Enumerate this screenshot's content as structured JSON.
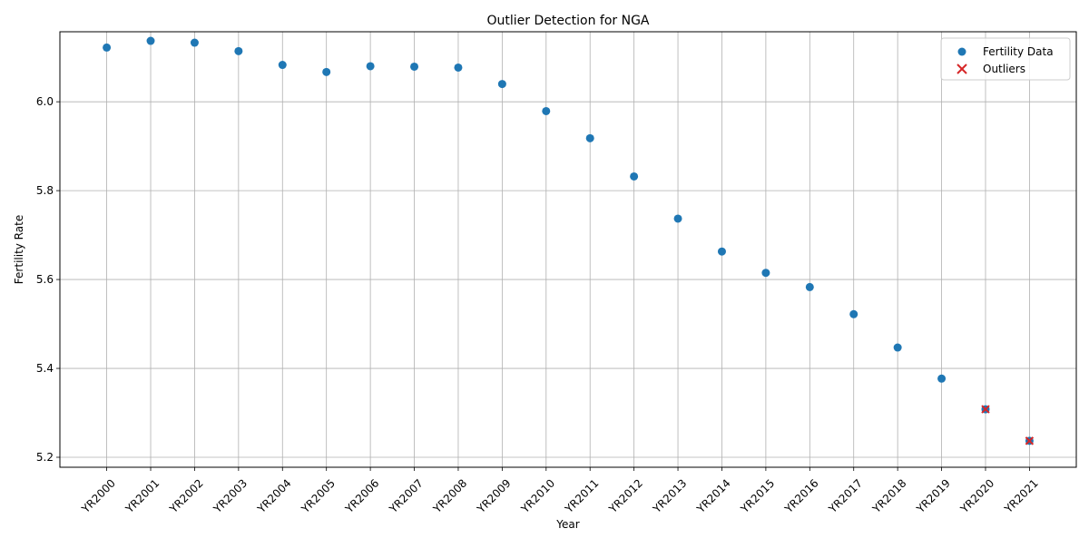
{
  "chart_data": {
    "type": "scatter",
    "title": "Outlier Detection for NGA",
    "xlabel": "Year",
    "ylabel": "Fertility Rate",
    "categories": [
      "YR2000",
      "YR2001",
      "YR2002",
      "YR2003",
      "YR2004",
      "YR2005",
      "YR2006",
      "YR2007",
      "YR2008",
      "YR2009",
      "YR2010",
      "YR2011",
      "YR2012",
      "YR2013",
      "YR2014",
      "YR2015",
      "YR2016",
      "YR2017",
      "YR2018",
      "YR2019",
      "YR2020",
      "YR2021"
    ],
    "ylim": [
      5.2,
      6.18
    ],
    "yticks": [
      "5.2",
      "5.4",
      "5.6",
      "5.8",
      "6.0"
    ],
    "grid": true,
    "legend_position": "top-right",
    "series": [
      {
        "name": "Fertility Data",
        "marker": "circle",
        "color": "#1f77b4",
        "values": [
          6.122,
          6.137,
          6.133,
          6.114,
          6.083,
          6.067,
          6.08,
          6.079,
          6.077,
          6.04,
          5.979,
          5.918,
          5.832,
          5.737,
          5.663,
          5.615,
          5.583,
          5.522,
          5.447,
          5.377,
          5.308,
          5.237
        ]
      },
      {
        "name": "Outliers",
        "marker": "x",
        "color": "#d62728",
        "points": [
          {
            "x": "YR2020",
            "y": 5.308
          },
          {
            "x": "YR2021",
            "y": 5.237
          }
        ]
      }
    ]
  }
}
